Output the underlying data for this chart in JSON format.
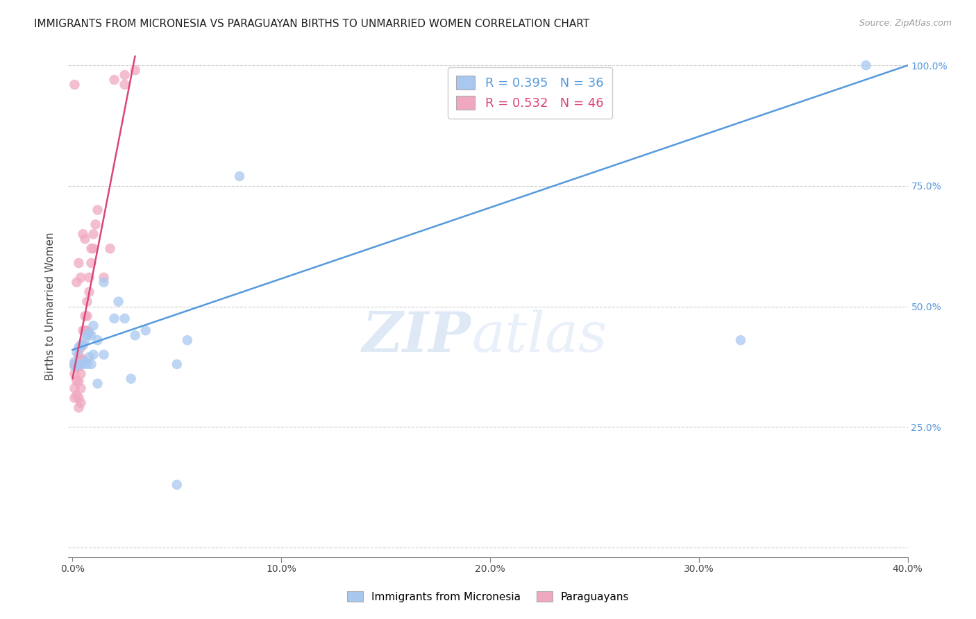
{
  "title": "IMMIGRANTS FROM MICRONESIA VS PARAGUAYAN BIRTHS TO UNMARRIED WOMEN CORRELATION CHART",
  "source": "Source: ZipAtlas.com",
  "ylabel": "Births to Unmarried Women",
  "legend_blue_r": "R = 0.395",
  "legend_blue_n": "N = 36",
  "legend_pink_r": "R = 0.532",
  "legend_pink_n": "N = 46",
  "legend_label_blue": "Immigrants from Micronesia",
  "legend_label_pink": "Paraguayans",
  "xlim": [
    -0.002,
    0.4
  ],
  "ylim": [
    -0.02,
    1.02
  ],
  "xticks": [
    0.0,
    0.1,
    0.2,
    0.3,
    0.4
  ],
  "xtick_labels": [
    "0.0%",
    "10.0%",
    "20.0%",
    "30.0%",
    "40.0%"
  ],
  "yticks": [
    0.0,
    0.25,
    0.5,
    0.75,
    1.0
  ],
  "ytick_labels": [
    "",
    "25.0%",
    "50.0%",
    "75.0%",
    "100.0%"
  ],
  "blue_color": "#a8c8f0",
  "pink_color": "#f0a8c0",
  "blue_line_color": "#5599dd",
  "pink_line_color": "#dd4477",
  "watermark_zip": "ZIP",
  "watermark_atlas": "atlas",
  "blue_points_x": [
    0.001,
    0.001,
    0.002,
    0.002,
    0.003,
    0.003,
    0.004,
    0.004,
    0.005,
    0.005,
    0.006,
    0.006,
    0.007,
    0.007,
    0.008,
    0.008,
    0.009,
    0.009,
    0.01,
    0.01,
    0.012,
    0.015,
    0.02,
    0.025,
    0.03,
    0.035,
    0.015,
    0.022,
    0.012,
    0.028,
    0.05,
    0.055,
    0.08,
    0.32,
    0.38,
    0.05
  ],
  "blue_points_y": [
    0.385,
    0.375,
    0.405,
    0.38,
    0.415,
    0.38,
    0.38,
    0.42,
    0.42,
    0.38,
    0.43,
    0.385,
    0.44,
    0.38,
    0.445,
    0.395,
    0.44,
    0.38,
    0.46,
    0.4,
    0.43,
    0.4,
    0.475,
    0.475,
    0.44,
    0.45,
    0.55,
    0.51,
    0.34,
    0.35,
    0.38,
    0.43,
    0.77,
    0.43,
    1.0,
    0.13
  ],
  "pink_points_x": [
    0.001,
    0.001,
    0.001,
    0.001,
    0.002,
    0.002,
    0.002,
    0.003,
    0.003,
    0.003,
    0.003,
    0.003,
    0.004,
    0.004,
    0.004,
    0.004,
    0.004,
    0.005,
    0.005,
    0.005,
    0.006,
    0.006,
    0.007,
    0.007,
    0.007,
    0.008,
    0.008,
    0.009,
    0.009,
    0.01,
    0.01,
    0.011,
    0.012,
    0.015,
    0.018,
    0.02,
    0.025,
    0.025,
    0.03,
    0.005,
    0.001,
    0.001,
    0.002,
    0.003,
    0.004,
    0.006
  ],
  "pink_points_y": [
    0.38,
    0.36,
    0.33,
    0.31,
    0.375,
    0.345,
    0.315,
    0.4,
    0.375,
    0.345,
    0.31,
    0.29,
    0.415,
    0.39,
    0.36,
    0.33,
    0.3,
    0.45,
    0.42,
    0.39,
    0.48,
    0.45,
    0.51,
    0.48,
    0.45,
    0.56,
    0.53,
    0.62,
    0.59,
    0.65,
    0.62,
    0.67,
    0.7,
    0.56,
    0.62,
    0.97,
    0.98,
    0.96,
    0.99,
    0.65,
    0.96,
    0.38,
    0.55,
    0.59,
    0.56,
    0.64
  ],
  "blue_line_x": [
    0.0,
    0.4
  ],
  "blue_line_y": [
    0.41,
    1.0
  ],
  "pink_line_x": [
    0.0,
    0.03
  ],
  "pink_line_y": [
    0.35,
    1.02
  ],
  "title_fontsize": 11,
  "axis_label_fontsize": 11,
  "tick_fontsize": 10,
  "legend_fontsize": 13
}
